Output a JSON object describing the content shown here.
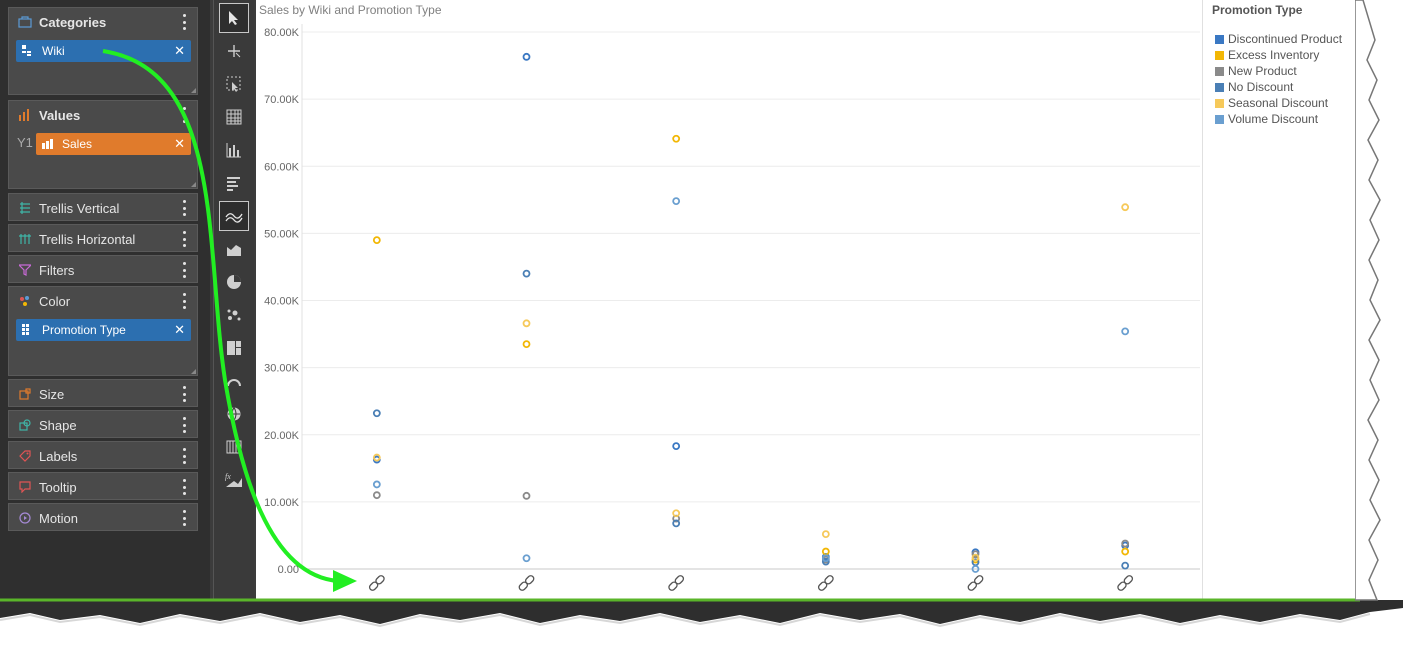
{
  "fields": {
    "categories": {
      "label": "Categories",
      "pill": "Wiki"
    },
    "values": {
      "label": "Values",
      "axis_tag": "Y1",
      "pill": "Sales"
    },
    "trellis_vertical": {
      "label": "Trellis Vertical"
    },
    "trellis_horizontal": {
      "label": "Trellis Horizontal"
    },
    "filters": {
      "label": "Filters"
    },
    "color": {
      "label": "Color",
      "pill": "Promotion Type"
    },
    "size": {
      "label": "Size"
    },
    "shape": {
      "label": "Shape"
    },
    "labels": {
      "label": "Labels"
    },
    "tooltip": {
      "label": "Tooltip"
    },
    "motion": {
      "label": "Motion"
    },
    "close_glyph": "✕"
  },
  "toolbar": {
    "tools": [
      "select-tool-icon",
      "add-tool-icon",
      "lasso-select-icon",
      "grid-chart-icon",
      "column-chart-icon",
      "bar-chart-icon",
      "line-chart-icon",
      "area-chart-icon",
      "pie-chart-icon",
      "scatter-chart-icon",
      "treemap-chart-icon",
      "gauge-chart-icon",
      "map-chart-icon",
      "table-chart-icon",
      "formula-chart-icon"
    ],
    "selected": [
      "select-tool-icon",
      "line-chart-icon"
    ]
  },
  "colors": {
    "accent_arrow": "#22ee22",
    "pill_blue": "#2c6fb0",
    "pill_orange": "#e07b2c"
  },
  "chart_data": {
    "type": "scatter",
    "title": "Sales by Wiki and Promotion Type",
    "legend_title": "Promotion Type",
    "legend_position": "right",
    "ylim": [
      0,
      80000
    ],
    "yticks": [
      "0.00",
      "10.00K",
      "20.00K",
      "30.00K",
      "40.00K",
      "50.00K",
      "60.00K",
      "70.00K",
      "80.00K"
    ],
    "categories_icon": "link-icon",
    "category_count": 6,
    "grid": true,
    "series": [
      {
        "name": "Discontinued Product",
        "color": "#3a78c3",
        "values": [
          16300,
          76300,
          18300,
          1800,
          2500,
          3500
        ]
      },
      {
        "name": "Excess Inventory",
        "color": "#f2b705",
        "values": [
          49000,
          33500,
          64100,
          2600,
          1400,
          2600
        ]
      },
      {
        "name": "New Product",
        "color": "#8a8a8a",
        "values": [
          11000,
          10900,
          7500,
          1400,
          2200,
          3800
        ]
      },
      {
        "name": "No Discount",
        "color": "#4a7fb5",
        "values": [
          23200,
          44000,
          6800,
          1100,
          1000,
          500
        ]
      },
      {
        "name": "Seasonal Discount",
        "color": "#f6c95a",
        "values": [
          16600,
          36600,
          8300,
          5200,
          1700,
          53900
        ]
      },
      {
        "name": "Volume Discount",
        "color": "#6a9fd0",
        "values": [
          12600,
          1600,
          54800,
          1600,
          0,
          35400
        ]
      }
    ]
  }
}
